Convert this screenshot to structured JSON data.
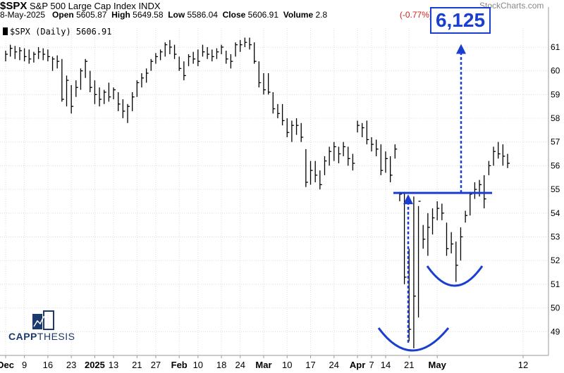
{
  "header": {
    "symbol": "$SPX",
    "name": "S&P 500 Large Cap Index",
    "exchange": "INDX",
    "date": "8-May-2025",
    "open_label": "Open",
    "open": "5605.87",
    "high_label": "High",
    "high": "5649.58",
    "low_label": "Low",
    "low": "5586.04",
    "close_label": "Close",
    "close": "5606.91",
    "volume_label": "Volume",
    "volume": "2.8",
    "change": "(-0.77%)",
    "watermark": "StockCharts.com"
  },
  "legend": {
    "text": "$SPX (Daily) 5606.91"
  },
  "annotation": {
    "target": "6,125"
  },
  "logo": {
    "bold": "CAPP",
    "thin": "THESIS"
  },
  "colors": {
    "bars": "#000000",
    "annotation": "#1a3fd0",
    "grid": "#dddddd",
    "logo": "#1b3a6b"
  },
  "chart_data": {
    "type": "ohlc-bar",
    "title": "$SPX (Daily) 5606.91",
    "y_ticks": [
      4900,
      5000,
      5100,
      5200,
      5300,
      5400,
      5500,
      5600,
      5700,
      5800,
      5900,
      6000,
      6100
    ],
    "y_tick_labels": [
      "49",
      "50",
      "51",
      "52",
      "53",
      "54",
      "55",
      "56",
      "57",
      "58",
      "59",
      "60",
      "61"
    ],
    "ylim": [
      4800,
      6180
    ],
    "x_tick_labels": [
      "Dec",
      "9",
      "16",
      "23",
      "2025",
      "13",
      "21",
      "27",
      "Feb",
      "10",
      "18",
      "24",
      "Mar",
      "10",
      "17",
      "24",
      "Apr",
      "7",
      "14",
      "21",
      "May",
      "12"
    ],
    "x_tick_bold": [
      true,
      false,
      false,
      false,
      true,
      false,
      false,
      false,
      true,
      false,
      false,
      false,
      true,
      false,
      false,
      false,
      true,
      false,
      false,
      false,
      true,
      false
    ],
    "bars": [
      {
        "h": 6085,
        "l": 6040,
        "c": 6070
      },
      {
        "h": 6110,
        "l": 6060,
        "c": 6095
      },
      {
        "h": 6105,
        "l": 6050,
        "c": 6080
      },
      {
        "h": 6100,
        "l": 6045,
        "c": 6085
      },
      {
        "h": 6095,
        "l": 6040,
        "c": 6060
      },
      {
        "h": 6090,
        "l": 6030,
        "c": 6050
      },
      {
        "h": 6080,
        "l": 6035,
        "c": 6070
      },
      {
        "h": 6100,
        "l": 6050,
        "c": 6080
      },
      {
        "h": 6095,
        "l": 6045,
        "c": 6070
      },
      {
        "h": 6090,
        "l": 6040,
        "c": 6060
      },
      {
        "h": 6060,
        "l": 6000,
        "c": 6050
      },
      {
        "h": 6065,
        "l": 6010,
        "c": 6040
      },
      {
        "h": 6050,
        "l": 5870,
        "c": 5880
      },
      {
        "h": 5980,
        "l": 5850,
        "c": 5960
      },
      {
        "h": 5940,
        "l": 5820,
        "c": 5850
      },
      {
        "h": 5960,
        "l": 5890,
        "c": 5930
      },
      {
        "h": 6010,
        "l": 5920,
        "c": 6000
      },
      {
        "h": 6050,
        "l": 5970,
        "c": 6040
      },
      {
        "h": 6000,
        "l": 5910,
        "c": 5930
      },
      {
        "h": 5960,
        "l": 5860,
        "c": 5900
      },
      {
        "h": 5930,
        "l": 5850,
        "c": 5880
      },
      {
        "h": 5920,
        "l": 5860,
        "c": 5910
      },
      {
        "h": 5950,
        "l": 5870,
        "c": 5890
      },
      {
        "h": 5930,
        "l": 5880,
        "c": 5920
      },
      {
        "h": 5910,
        "l": 5830,
        "c": 5860
      },
      {
        "h": 5880,
        "l": 5800,
        "c": 5830
      },
      {
        "h": 5860,
        "l": 5780,
        "c": 5850
      },
      {
        "h": 5910,
        "l": 5830,
        "c": 5890
      },
      {
        "h": 5960,
        "l": 5890,
        "c": 5950
      },
      {
        "h": 5990,
        "l": 5930,
        "c": 5970
      },
      {
        "h": 6010,
        "l": 5950,
        "c": 5990
      },
      {
        "h": 6050,
        "l": 6000,
        "c": 6040
      },
      {
        "h": 6075,
        "l": 6030,
        "c": 6060
      },
      {
        "h": 6090,
        "l": 6045,
        "c": 6080
      },
      {
        "h": 6120,
        "l": 6060,
        "c": 6110
      },
      {
        "h": 6130,
        "l": 6070,
        "c": 6100
      },
      {
        "h": 6110,
        "l": 6050,
        "c": 6070
      },
      {
        "h": 6060,
        "l": 6000,
        "c": 6010
      },
      {
        "h": 6040,
        "l": 5960,
        "c": 5980
      },
      {
        "h": 6070,
        "l": 6020,
        "c": 6060
      },
      {
        "h": 6080,
        "l": 6030,
        "c": 6050
      },
      {
        "h": 6090,
        "l": 6020,
        "c": 6040
      },
      {
        "h": 6110,
        "l": 6060,
        "c": 6080
      },
      {
        "h": 6100,
        "l": 6050,
        "c": 6070
      },
      {
        "h": 6090,
        "l": 6040,
        "c": 6060
      },
      {
        "h": 6095,
        "l": 6050,
        "c": 6080
      },
      {
        "h": 6110,
        "l": 6070,
        "c": 6100
      },
      {
        "h": 6085,
        "l": 6030,
        "c": 6050
      },
      {
        "h": 6070,
        "l": 6010,
        "c": 6040
      },
      {
        "h": 6120,
        "l": 6060,
        "c": 6110
      },
      {
        "h": 6130,
        "l": 6080,
        "c": 6110
      },
      {
        "h": 6140,
        "l": 6100,
        "c": 6120
      },
      {
        "h": 6140,
        "l": 6090,
        "c": 6110
      },
      {
        "h": 6120,
        "l": 6030,
        "c": 6040
      },
      {
        "h": 6040,
        "l": 5930,
        "c": 5950
      },
      {
        "h": 5990,
        "l": 5900,
        "c": 5920
      },
      {
        "h": 5990,
        "l": 5900,
        "c": 5910
      },
      {
        "h": 5910,
        "l": 5820,
        "c": 5840
      },
      {
        "h": 5860,
        "l": 5800,
        "c": 5820
      },
      {
        "h": 5860,
        "l": 5770,
        "c": 5790
      },
      {
        "h": 5800,
        "l": 5720,
        "c": 5740
      },
      {
        "h": 5790,
        "l": 5700,
        "c": 5770
      },
      {
        "h": 5800,
        "l": 5730,
        "c": 5770
      },
      {
        "h": 5780,
        "l": 5700,
        "c": 5720
      },
      {
        "h": 5670,
        "l": 5510,
        "c": 5530
      },
      {
        "h": 5620,
        "l": 5520,
        "c": 5580
      },
      {
        "h": 5620,
        "l": 5530,
        "c": 5560
      },
      {
        "h": 5580,
        "l": 5500,
        "c": 5520
      },
      {
        "h": 5640,
        "l": 5560,
        "c": 5620
      },
      {
        "h": 5680,
        "l": 5600,
        "c": 5660
      },
      {
        "h": 5700,
        "l": 5620,
        "c": 5680
      },
      {
        "h": 5680,
        "l": 5610,
        "c": 5650
      },
      {
        "h": 5700,
        "l": 5640,
        "c": 5680
      },
      {
        "h": 5680,
        "l": 5600,
        "c": 5630
      },
      {
        "h": 5650,
        "l": 5580,
        "c": 5610
      },
      {
        "h": 5790,
        "l": 5740,
        "c": 5770
      },
      {
        "h": 5780,
        "l": 5720,
        "c": 5760
      },
      {
        "h": 5790,
        "l": 5690,
        "c": 5710
      },
      {
        "h": 5720,
        "l": 5660,
        "c": 5690
      },
      {
        "h": 5710,
        "l": 5640,
        "c": 5670
      },
      {
        "h": 5690,
        "l": 5560,
        "c": 5580
      },
      {
        "h": 5660,
        "l": 5570,
        "c": 5630
      },
      {
        "h": 5640,
        "l": 5530,
        "c": 5560
      },
      {
        "h": 5690,
        "l": 5630,
        "c": 5670
      },
      {
        "h": 5490,
        "l": 5450,
        "c": 5480
      },
      {
        "h": 5490,
        "l": 5100,
        "c": 5130
      },
      {
        "h": 5250,
        "l": 4860,
        "c": 4910
      },
      {
        "h": 5470,
        "l": 4830,
        "c": 5050
      },
      {
        "h": 5430,
        "l": 4960,
        "c": 5450
      },
      {
        "h": 5350,
        "l": 5250,
        "c": 5290
      },
      {
        "h": 5400,
        "l": 5220,
        "c": 5340
      },
      {
        "h": 5420,
        "l": 5310,
        "c": 5380
      },
      {
        "h": 5450,
        "l": 5370,
        "c": 5420
      },
      {
        "h": 5440,
        "l": 5370,
        "c": 5400
      },
      {
        "h": 5360,
        "l": 5220,
        "c": 5250
      },
      {
        "h": 5320,
        "l": 5230,
        "c": 5270
      },
      {
        "h": 5280,
        "l": 5110,
        "c": 5180
      },
      {
        "h": 5340,
        "l": 5200,
        "c": 5300
      },
      {
        "h": 5410,
        "l": 5360,
        "c": 5390
      },
      {
        "h": 5490,
        "l": 5390,
        "c": 5480
      },
      {
        "h": 5530,
        "l": 5460,
        "c": 5500
      },
      {
        "h": 5540,
        "l": 5470,
        "c": 5520
      },
      {
        "h": 5560,
        "l": 5420,
        "c": 5460
      },
      {
        "h": 5620,
        "l": 5560,
        "c": 5600
      },
      {
        "h": 5680,
        "l": 5600,
        "c": 5660
      },
      {
        "h": 5700,
        "l": 5630,
        "c": 5650
      },
      {
        "h": 5690,
        "l": 5600,
        "c": 5640
      },
      {
        "h": 5650,
        "l": 5590,
        "c": 5610
      }
    ],
    "resistance_level": 5485,
    "target_level": 6125
  }
}
